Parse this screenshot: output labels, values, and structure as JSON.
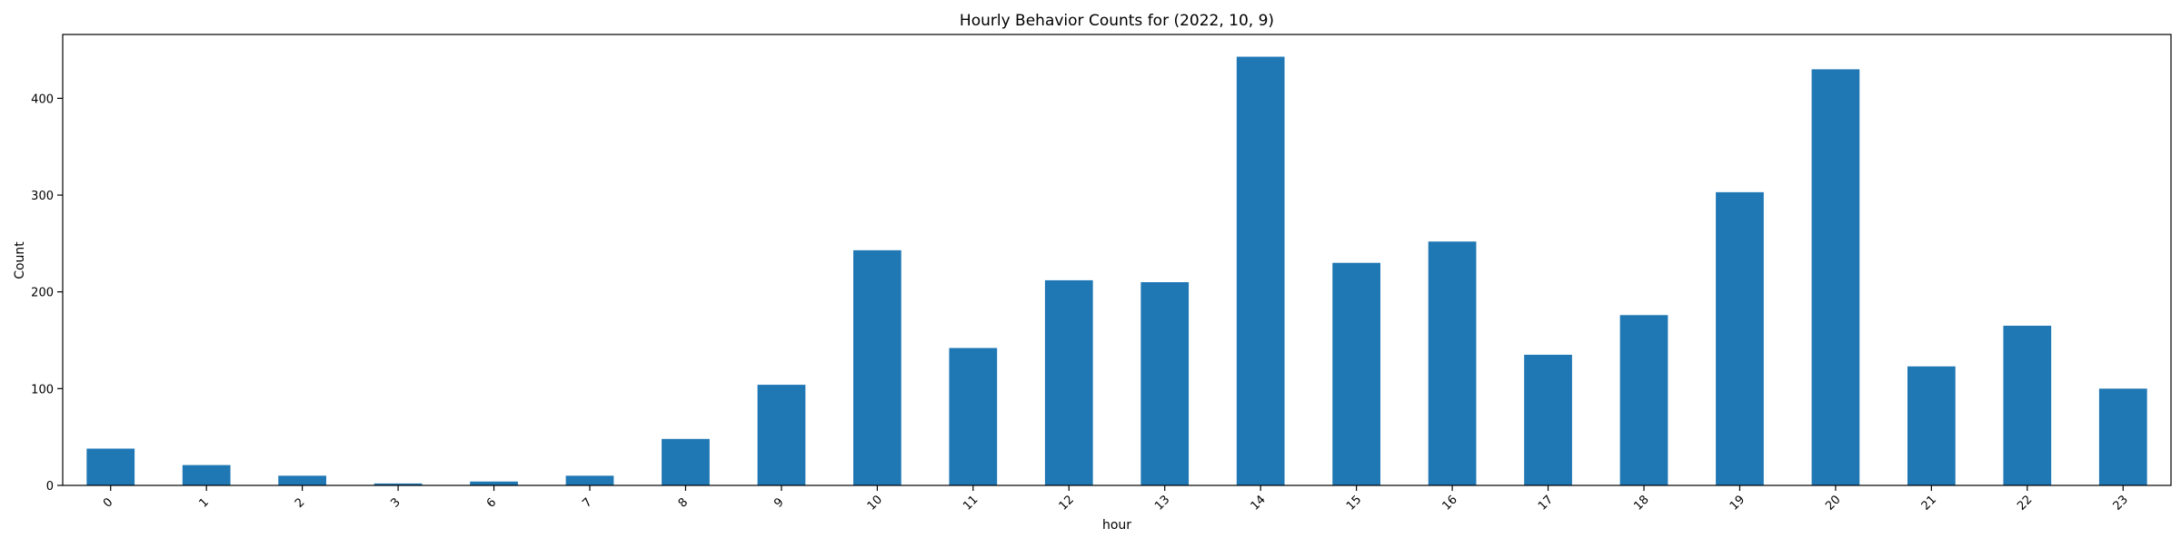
{
  "colors": {
    "bar": "#1f77b4",
    "axis": "#000000",
    "background": "#ffffff"
  },
  "chart_data": {
    "type": "bar",
    "title": "Hourly Behavior Counts for (2022, 10, 9)",
    "xlabel": "hour",
    "ylabel": "Count",
    "categories": [
      "0",
      "1",
      "2",
      "3",
      "6",
      "7",
      "8",
      "9",
      "10",
      "11",
      "12",
      "13",
      "14",
      "15",
      "16",
      "17",
      "18",
      "19",
      "20",
      "21",
      "22",
      "23"
    ],
    "values": [
      38,
      21,
      10,
      2,
      4,
      10,
      48,
      104,
      243,
      142,
      212,
      210,
      443,
      230,
      252,
      135,
      176,
      303,
      430,
      123,
      165,
      100
    ],
    "ylim": [
      0,
      466
    ],
    "yticks": [
      0,
      100,
      200,
      300,
      400
    ],
    "grid": false,
    "legend": "none"
  }
}
